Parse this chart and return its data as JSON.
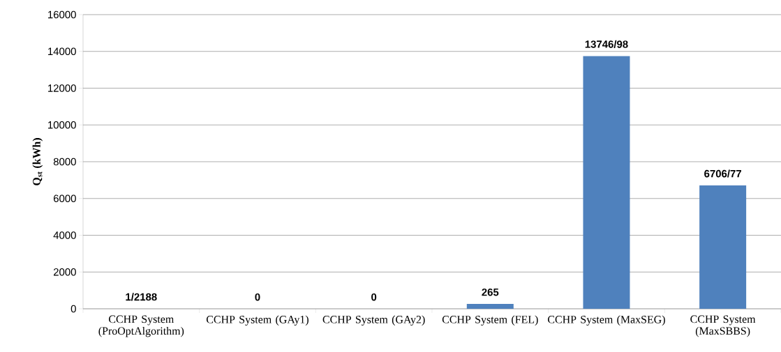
{
  "chart_data": {
    "type": "bar",
    "ylabel": "Q$_{st}$ (kWh)",
    "categories": [
      "CCHP System (ProOptAlgorithm)",
      "CCHP System (GAy1)",
      "CCHP System (GAy2)",
      "CCHP System (FEL)",
      "CCHP System (MaxSEG)",
      "CCHP System (MaxSBBS)"
    ],
    "values": [
      1.2188,
      0,
      0,
      265,
      13746.98,
      6706.77
    ],
    "value_labels": [
      "1/2188",
      "0",
      "0",
      "265",
      "13746/98",
      "6706/77"
    ],
    "color": "#4f81bd",
    "ylim": [
      0,
      16000
    ],
    "yticks": [
      0,
      2000,
      4000,
      6000,
      8000,
      10000,
      12000,
      14000,
      16000
    ],
    "grid": "y"
  }
}
